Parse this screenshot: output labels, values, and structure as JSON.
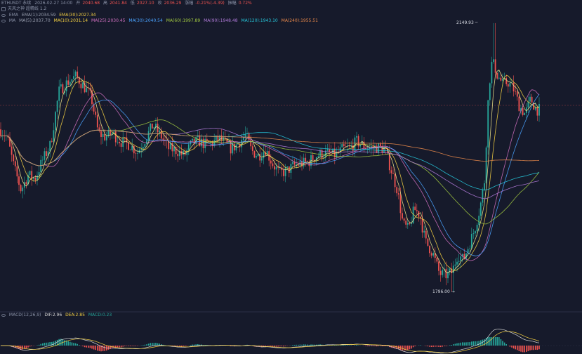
{
  "header": {
    "line1": {
      "symbol": "ETHUSDT 永续",
      "timestamp": "2026-02-27 14:00",
      "open_label": "开",
      "open": "2040.68",
      "high_label": "高",
      "high": "2041.84",
      "low_label": "低",
      "low": "2027.10",
      "close_label": "收",
      "close": "2036.29",
      "change_label": "涨幅",
      "change": "-0.21%(-4.39)",
      "amplitude_label": "振幅",
      "amplitude": "0.72%"
    },
    "line2": {
      "indicator": "天风之神 超精线 1.2"
    },
    "line3": {
      "ema_label": "EMA",
      "ema1": "EMA(1):2034.59",
      "ema30": "EMA(30):2027.34"
    },
    "line4": {
      "ma_label": "MA",
      "ma5": "MA(5):2037.70",
      "ma10": "MA(10):2031.14",
      "ma25": "MA(25):2030.45",
      "ma30": "MA(30):2040.54",
      "ma60": "MA(60):1997.89",
      "ma90": "MA(90):1948.48",
      "ma120": "MA(120):1943.10",
      "ma240": "MA(240):1955.51"
    },
    "macd": {
      "label": "MACD(12,26,9)",
      "dif": "DIF:2.96",
      "dea": "DEA:2.85",
      "macd": "MACD:0.23"
    }
  },
  "colors": {
    "background": "#161a2b",
    "up": "#26a69a",
    "down": "#ef5350",
    "ma5": "#f0e68c",
    "ma10": "#f5d142",
    "ma25": "#d070c0",
    "ma30": "#4aa3ff",
    "ma60": "#a0c840",
    "ma90": "#b07ad8",
    "ma120": "#26c6da",
    "ma240": "#e8884a",
    "ema1": "#9aa0b0",
    "ema30": "#f5d142",
    "dif": "#d8d8d8",
    "dea": "#f5d142"
  },
  "chart_data": {
    "type": "candlestick",
    "symbol": "ETHUSDT",
    "annotations": {
      "high": "2149.93",
      "low": "1796.00"
    },
    "ylim": [
      1790,
      2160
    ],
    "grid": false,
    "close_path": [
      [
        0,
        2010
      ],
      [
        10,
        2000
      ],
      [
        20,
        1960
      ],
      [
        30,
        1930
      ],
      [
        40,
        1950
      ],
      [
        50,
        1945
      ],
      [
        60,
        1968
      ],
      [
        72,
        1990
      ],
      [
        84,
        2060
      ],
      [
        96,
        2072
      ],
      [
        108,
        2080
      ],
      [
        120,
        2066
      ],
      [
        130,
        2052
      ],
      [
        140,
        2005
      ],
      [
        150,
        2000
      ],
      [
        160,
        2005
      ],
      [
        172,
        1994
      ],
      [
        184,
        1990
      ],
      [
        196,
        1980
      ],
      [
        206,
        1996
      ],
      [
        218,
        2016
      ],
      [
        230,
        2000
      ],
      [
        240,
        1985
      ],
      [
        252,
        1982
      ],
      [
        262,
        1975
      ],
      [
        272,
        1990
      ],
      [
        282,
        1995
      ],
      [
        292,
        1990
      ],
      [
        302,
        1992
      ],
      [
        312,
        1998
      ],
      [
        320,
        1992
      ],
      [
        330,
        1984
      ],
      [
        340,
        1992
      ],
      [
        350,
        2003
      ],
      [
        358,
        1982
      ],
      [
        368,
        1975
      ],
      [
        378,
        1984
      ],
      [
        388,
        1965
      ],
      [
        398,
        1952
      ],
      [
        408,
        1955
      ],
      [
        418,
        1962
      ],
      [
        428,
        1965
      ],
      [
        438,
        1966
      ],
      [
        448,
        1974
      ],
      [
        458,
        1978
      ],
      [
        468,
        1978
      ],
      [
        478,
        1976
      ],
      [
        488,
        1984
      ],
      [
        498,
        1985
      ],
      [
        508,
        1994
      ],
      [
        518,
        1988
      ],
      [
        528,
        1986
      ],
      [
        538,
        1986
      ],
      [
        548,
        1984
      ],
      [
        556,
        1960
      ],
      [
        566,
        1930
      ],
      [
        574,
        1885
      ],
      [
        582,
        1878
      ],
      [
        590,
        1905
      ],
      [
        598,
        1898
      ],
      [
        606,
        1862
      ],
      [
        616,
        1848
      ],
      [
        626,
        1820
      ],
      [
        636,
        1818
      ],
      [
        644,
        1822
      ],
      [
        652,
        1846
      ],
      [
        660,
        1838
      ],
      [
        668,
        1858
      ],
      [
        676,
        1878
      ],
      [
        684,
        1908
      ],
      [
        690,
        1942
      ],
      [
        696,
        2062
      ],
      [
        700,
        2096
      ],
      [
        704,
        2095
      ],
      [
        708,
        2082
      ],
      [
        716,
        2070
      ],
      [
        724,
        2072
      ],
      [
        732,
        2062
      ],
      [
        740,
        2040
      ],
      [
        748,
        2030
      ],
      [
        756,
        2050
      ],
      [
        764,
        2036
      ],
      [
        770,
        2036
      ]
    ]
  }
}
